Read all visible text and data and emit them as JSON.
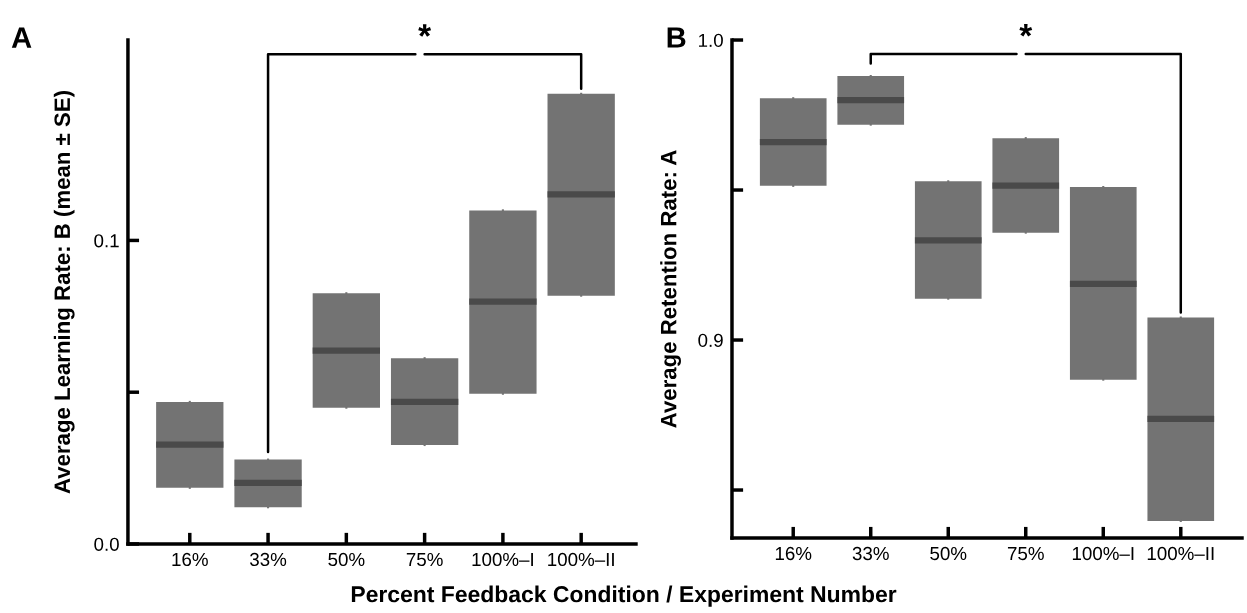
{
  "chart_data": [
    {
      "type": "box",
      "title": "A",
      "xlabel": "Percent Feedback Condition / Experiment Number",
      "ylabel": "Average Learning Rate: B (mean ± SE)",
      "categories": [
        "16%",
        "33%",
        "50%",
        "75%",
        "100%–I",
        "100%–II"
      ],
      "series": [
        {
          "color": "#737373",
          "boxes": [
            {
              "low": 0.0185,
              "q1": 0.0185,
              "median": 0.0327,
              "q3": 0.0468,
              "high": 0.0468
            },
            {
              "low": 0.0121,
              "q1": 0.0121,
              "median": 0.0201,
              "q3": 0.0278,
              "high": 0.0278
            },
            {
              "low": 0.0449,
              "q1": 0.0449,
              "median": 0.0637,
              "q3": 0.0826,
              "high": 0.0826
            },
            {
              "low": 0.0326,
              "q1": 0.0326,
              "median": 0.0468,
              "q3": 0.0612,
              "high": 0.0612
            },
            {
              "low": 0.0495,
              "q1": 0.0495,
              "median": 0.0798,
              "q3": 0.1099,
              "high": 0.1099
            },
            {
              "low": 0.0818,
              "q1": 0.0818,
              "median": 0.1152,
              "q3": 0.1483,
              "high": 0.1483
            }
          ]
        }
      ],
      "ylim": [
        0,
        0.166
      ],
      "yticks": [
        {
          "value": 0,
          "label": "0.0"
        },
        {
          "value": 0.05,
          "label": null
        },
        0.1
      ],
      "annotations": [
        "*"
      ]
    },
    {
      "type": "box",
      "title": "B",
      "ylabel": "Average Retention Rate: A",
      "categories": [
        "16%",
        "33%",
        "50%",
        "75%",
        "100%–I",
        "100%–II"
      ],
      "series": [
        {
          "color": "#737373",
          "boxes": [
            {
              "low": 0.9514,
              "q1": 0.9514,
              "median": 0.966,
              "q3": 0.9806,
              "high": 0.9806
            },
            {
              "low": 0.9718,
              "q1": 0.9718,
              "median": 0.98,
              "q3": 0.988,
              "high": 0.988
            },
            {
              "low": 0.9138,
              "q1": 0.9138,
              "median": 0.9332,
              "q3": 0.9529,
              "high": 0.9529
            },
            {
              "low": 0.9358,
              "q1": 0.9358,
              "median": 0.9515,
              "q3": 0.9673,
              "high": 0.9673
            },
            {
              "low": 0.8868,
              "q1": 0.8868,
              "median": 0.9187,
              "q3": 0.951,
              "high": 0.951
            },
            {
              "low": 0.8397,
              "q1": 0.8397,
              "median": 0.8737,
              "q3": 0.9075,
              "high": 0.9075
            }
          ]
        }
      ],
      "ylim": [
        0.834,
        1.0
      ],
      "yticks": [
        {
          "value": 0.85,
          "label": null
        },
        0.9,
        {
          "value": 0.95,
          "label": null
        },
        {
          "value": 1.0,
          "label": "1.0"
        }
      ],
      "annotations": [
        "*"
      ]
    }
  ]
}
